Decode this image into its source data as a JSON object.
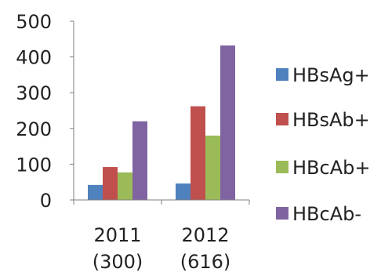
{
  "chart_data": {
    "type": "bar",
    "categories": [
      {
        "line1": "2011",
        "line2": "(300)"
      },
      {
        "line1": "2012",
        "line2": "(616)"
      }
    ],
    "series": [
      {
        "name": "HBsAg+",
        "values": [
          42,
          46
        ],
        "color": "#4F81BD"
      },
      {
        "name": "HBsAb+",
        "values": [
          92,
          262
        ],
        "color": "#C0504D"
      },
      {
        "name": "HBcAb+",
        "values": [
          77,
          180
        ],
        "color": "#9BBB59"
      },
      {
        "name": "HBcAb-",
        "values": [
          220,
          432
        ],
        "color": "#8064A2"
      }
    ],
    "yticks": [
      "0",
      "100",
      "200",
      "300",
      "400",
      "500"
    ],
    "ylim": [
      0,
      500
    ],
    "grid": false,
    "legend_position": "right"
  }
}
